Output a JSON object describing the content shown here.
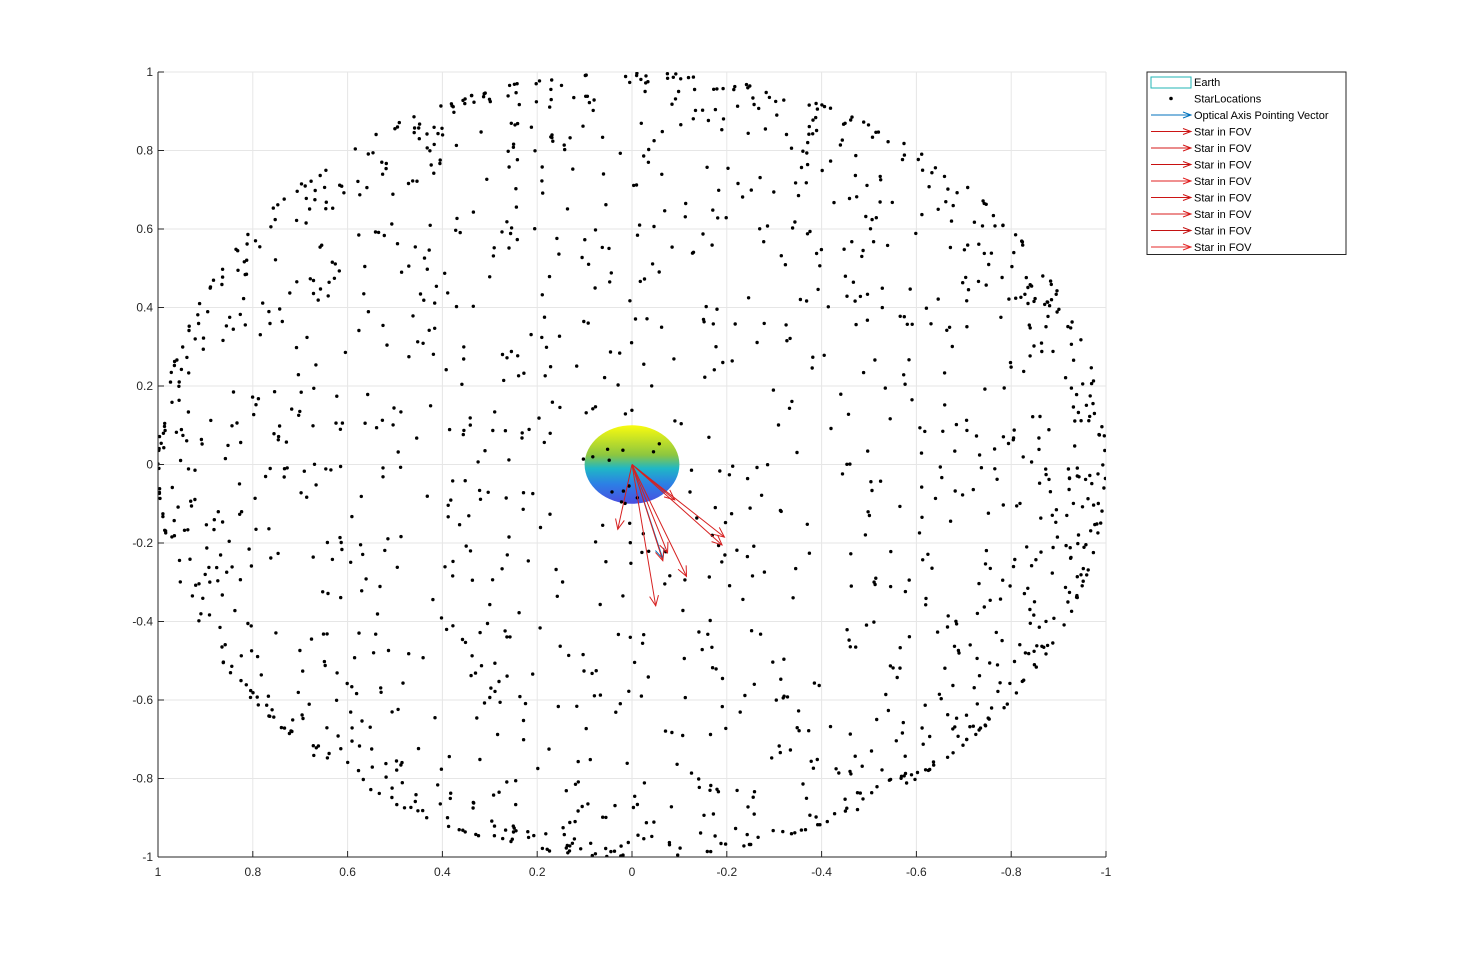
{
  "chart_data": {
    "type": "scatter",
    "title": "",
    "xlabel": "",
    "ylabel": "",
    "xlim": [
      1,
      -1
    ],
    "ylim": [
      -1,
      1
    ],
    "x_reversed": true,
    "grid": true,
    "xticks": [
      1,
      0.8,
      0.6,
      0.4,
      0.2,
      0,
      -0.2,
      -0.4,
      -0.6,
      -0.8,
      -1
    ],
    "yticks": [
      1,
      0.8,
      0.6,
      0.4,
      0.2,
      0,
      -0.2,
      -0.4,
      -0.6,
      -0.8,
      -1
    ],
    "xtick_labels": [
      "1",
      "0.8",
      "0.6",
      "0.4",
      "0.2",
      "0",
      "-0.2",
      "-0.4",
      "-0.6",
      "-0.8",
      "-1"
    ],
    "ytick_labels": [
      "1",
      "0.8",
      "0.6",
      "0.4",
      "0.2",
      "0",
      "-0.2",
      "-0.4",
      "-0.6",
      "-0.8",
      "-1"
    ],
    "legend": {
      "placement": "outside-top-right",
      "entries": [
        {
          "label": "Earth",
          "kind": "patch",
          "color": "#22b5b5"
        },
        {
          "label": "StarLocations",
          "kind": "marker",
          "color": "#000000"
        },
        {
          "label": "Optical Axis Pointing Vector",
          "kind": "arrow",
          "color": "#0072bd"
        },
        {
          "label": "Star in FOV",
          "kind": "arrow",
          "color": "#cc1414"
        },
        {
          "label": "Star in FOV",
          "kind": "arrow",
          "color": "#d41818"
        },
        {
          "label": "Star in FOV",
          "kind": "arrow",
          "color": "#c81010"
        },
        {
          "label": "Star in FOV",
          "kind": "arrow",
          "color": "#e02020"
        },
        {
          "label": "Star in FOV",
          "kind": "arrow",
          "color": "#cc1414"
        },
        {
          "label": "Star in FOV",
          "kind": "arrow",
          "color": "#d81c1c"
        },
        {
          "label": "Star in FOV",
          "kind": "arrow",
          "color": "#c41212"
        },
        {
          "label": "Star in FOV",
          "kind": "arrow",
          "color": "#e42a2a"
        }
      ]
    },
    "earth": {
      "center": [
        0,
        0
      ],
      "radius": 0.1,
      "colormap": [
        "#f9fb0e",
        "#4bbf88",
        "#1fb7c6",
        "#2c7fe5",
        "#4a4ee0"
      ]
    },
    "star_locations": {
      "count": 1500,
      "distribution": "unit sphere projected",
      "color": "#000000",
      "seed": 20240601
    },
    "optical_axis": {
      "from": [
        0,
        0
      ],
      "to": [
        -0.065,
        -0.24
      ],
      "color": "#0072bd"
    },
    "fov_vectors": [
      {
        "from": [
          0,
          0
        ],
        "to": [
          0.03,
          -0.165
        ]
      },
      {
        "from": [
          0,
          0
        ],
        "to": [
          -0.05,
          -0.36
        ]
      },
      {
        "from": [
          0,
          0
        ],
        "to": [
          -0.065,
          -0.245
        ]
      },
      {
        "from": [
          0,
          0
        ],
        "to": [
          -0.115,
          -0.285
        ]
      },
      {
        "from": [
          0,
          0
        ],
        "to": [
          -0.195,
          -0.185
        ]
      },
      {
        "from": [
          0,
          0
        ],
        "to": [
          -0.19,
          -0.205
        ]
      },
      {
        "from": [
          0,
          0
        ],
        "to": [
          -0.075,
          -0.225
        ]
      },
      {
        "from": [
          0,
          0
        ],
        "to": [
          -0.09,
          -0.09
        ]
      }
    ],
    "fov_color": "#d62020"
  }
}
